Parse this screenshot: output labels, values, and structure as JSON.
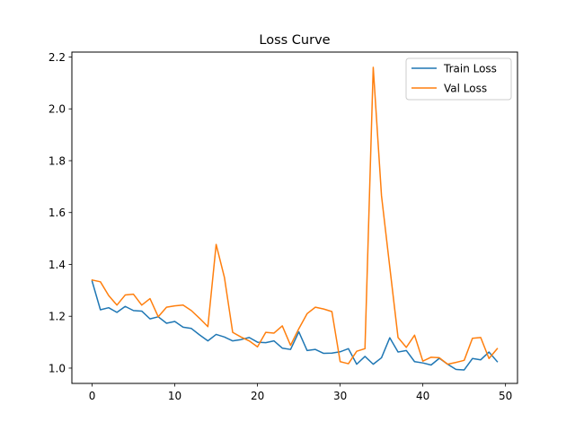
{
  "chart_data": {
    "type": "line",
    "title": "Loss Curve",
    "xlabel": "",
    "ylabel": "",
    "xlim": [
      -2.45,
      51.45
    ],
    "ylim": [
      0.941,
      2.219
    ],
    "xticks": [
      0,
      10,
      20,
      30,
      40,
      50
    ],
    "yticks": [
      1.0,
      1.2,
      1.4,
      1.6,
      1.8,
      2.0,
      2.2
    ],
    "ytick_labels": [
      "1.0",
      "1.2",
      "1.4",
      "1.6",
      "1.8",
      "2.0",
      "2.2"
    ],
    "grid": false,
    "legend": "top-right",
    "x": [
      0,
      1,
      2,
      3,
      4,
      5,
      6,
      7,
      8,
      9,
      10,
      11,
      12,
      13,
      14,
      15,
      16,
      17,
      18,
      19,
      20,
      21,
      22,
      23,
      24,
      25,
      26,
      27,
      28,
      29,
      30,
      31,
      32,
      33,
      34,
      35,
      36,
      37,
      38,
      39,
      40,
      41,
      42,
      43,
      44,
      45,
      46,
      47,
      48,
      49
    ],
    "series": [
      {
        "name": "Train Loss",
        "color": "#1f77b4",
        "values": [
          1.335,
          1.225,
          1.233,
          1.215,
          1.238,
          1.222,
          1.22,
          1.19,
          1.198,
          1.173,
          1.18,
          1.158,
          1.153,
          1.128,
          1.105,
          1.13,
          1.12,
          1.105,
          1.11,
          1.118,
          1.1,
          1.098,
          1.105,
          1.077,
          1.072,
          1.14,
          1.068,
          1.072,
          1.057,
          1.058,
          1.063,
          1.075,
          1.015,
          1.045,
          1.015,
          1.04,
          1.117,
          1.062,
          1.068,
          1.025,
          1.02,
          1.012,
          1.038,
          1.015,
          0.995,
          0.993,
          1.037,
          1.032,
          1.062,
          1.025
        ]
      },
      {
        "name": "Val Loss",
        "color": "#ff7f0e",
        "values": [
          1.34,
          1.333,
          1.28,
          1.243,
          1.282,
          1.285,
          1.243,
          1.268,
          1.198,
          1.235,
          1.24,
          1.243,
          1.222,
          1.192,
          1.16,
          1.477,
          1.35,
          1.138,
          1.12,
          1.105,
          1.082,
          1.138,
          1.135,
          1.163,
          1.088,
          1.152,
          1.21,
          1.235,
          1.228,
          1.218,
          1.025,
          1.017,
          1.065,
          1.075,
          2.16,
          1.665,
          1.39,
          1.118,
          1.08,
          1.127,
          1.027,
          1.042,
          1.04,
          1.015,
          1.022,
          1.03,
          1.115,
          1.118,
          1.037,
          1.075
        ]
      }
    ]
  }
}
